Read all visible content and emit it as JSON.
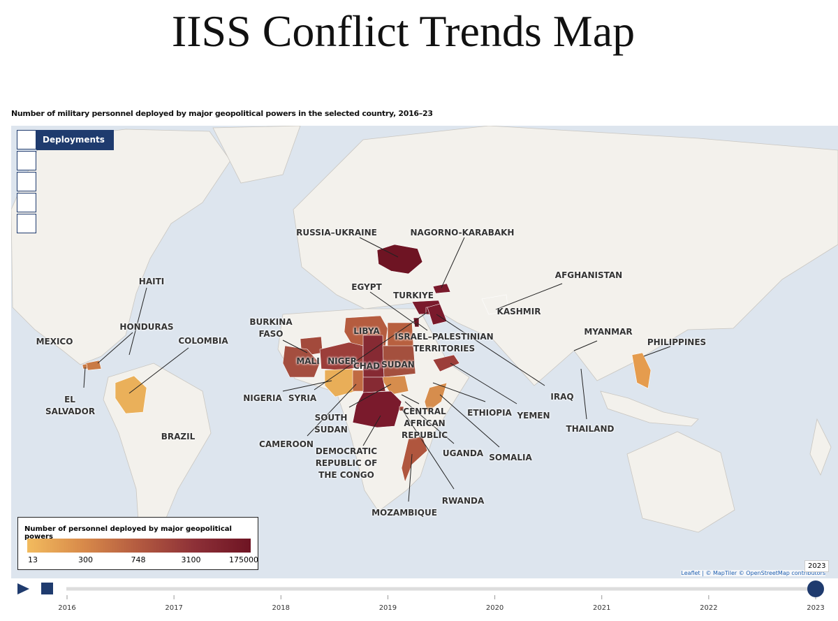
{
  "header": {
    "title": "IISS Conflict Trends Map",
    "subtitle": "Number of military personnel deployed by major geopolitical powers in the selected country, 2016–23"
  },
  "layers": {
    "active": "Deployments"
  },
  "map": {
    "places": [
      {
        "label": "RUSSIA–UKRAINE",
        "color": "#6e1423"
      },
      {
        "label": "NAGORNO-KARABAKH",
        "color": "#7a1a2c"
      },
      {
        "label": "EGYPT",
        "color": "#b8603f"
      },
      {
        "label": "TURKIYE",
        "color": "#7a1a2c"
      },
      {
        "label": "AFGHANISTAN",
        "color": null
      },
      {
        "label": "KASHMIR",
        "color": null
      },
      {
        "label": "BURKINA FASO",
        "color": "#a34a3c"
      },
      {
        "label": "LIBYA",
        "color": "#b55c3f"
      },
      {
        "label": "ISRAEL–PALESTINIAN TERRITORIES",
        "color": "#6e1423"
      },
      {
        "label": "MYANMAR",
        "color": null
      },
      {
        "label": "PHILIPPINES",
        "color": "#e59c4e"
      },
      {
        "label": "MEXICO",
        "color": null
      },
      {
        "label": "HONDURAS",
        "color": "#c97a45"
      },
      {
        "label": "HAITI",
        "color": null
      },
      {
        "label": "COLOMBIA",
        "color": "#eab05a"
      },
      {
        "label": "MALI",
        "color": "#a44e3f"
      },
      {
        "label": "NIGER",
        "color": "#9c3e3a"
      },
      {
        "label": "CHAD",
        "color": "#862a33"
      },
      {
        "label": "SUDAN",
        "color": "#a4503e"
      },
      {
        "label": "NIGERIA",
        "color": "#e9ae58"
      },
      {
        "label": "SYRIA",
        "color": "#7a1a2c"
      },
      {
        "label": "EL SALVADOR",
        "color": "#c97a45"
      },
      {
        "label": "ETHIOPIA",
        "color": null
      },
      {
        "label": "YEMEN",
        "color": "#9c3e3a"
      },
      {
        "label": "IRAQ",
        "color": "#7a1a2c"
      },
      {
        "label": "SOUTH SUDAN",
        "color": "#d68d4d"
      },
      {
        "label": "CENTRAL AFRICAN REPUBLIC",
        "color": "#862a33"
      },
      {
        "label": "THAILAND",
        "color": null
      },
      {
        "label": "BRAZIL",
        "color": null
      },
      {
        "label": "CAMEROON",
        "color": "#c06a42"
      },
      {
        "label": "DEMOCRATIC REPUBLIC OF THE CONGO",
        "color": "#7a1a2c"
      },
      {
        "label": "UGANDA",
        "color": null
      },
      {
        "label": "SOMALIA",
        "color": "#d68d4d"
      },
      {
        "label": "RWANDA",
        "color": "#a34a3c"
      },
      {
        "label": "MOZAMBIQUE",
        "color": "#b0563e"
      }
    ],
    "legend": {
      "title": "Number of personnel deployed by major geopolitical powers",
      "ticks": [
        13,
        300,
        748,
        3100,
        175000
      ],
      "colors": [
        "#f2bb5e",
        "#d88a4a",
        "#b35a40",
        "#8d3037",
        "#6e1423"
      ]
    },
    "attribution": "Leaflet | © MapTiler © OpenStreetMap contributors"
  },
  "timeline": {
    "years": [
      2016,
      2017,
      2018,
      2019,
      2020,
      2021,
      2022,
      2023
    ],
    "current_year": 2023
  }
}
